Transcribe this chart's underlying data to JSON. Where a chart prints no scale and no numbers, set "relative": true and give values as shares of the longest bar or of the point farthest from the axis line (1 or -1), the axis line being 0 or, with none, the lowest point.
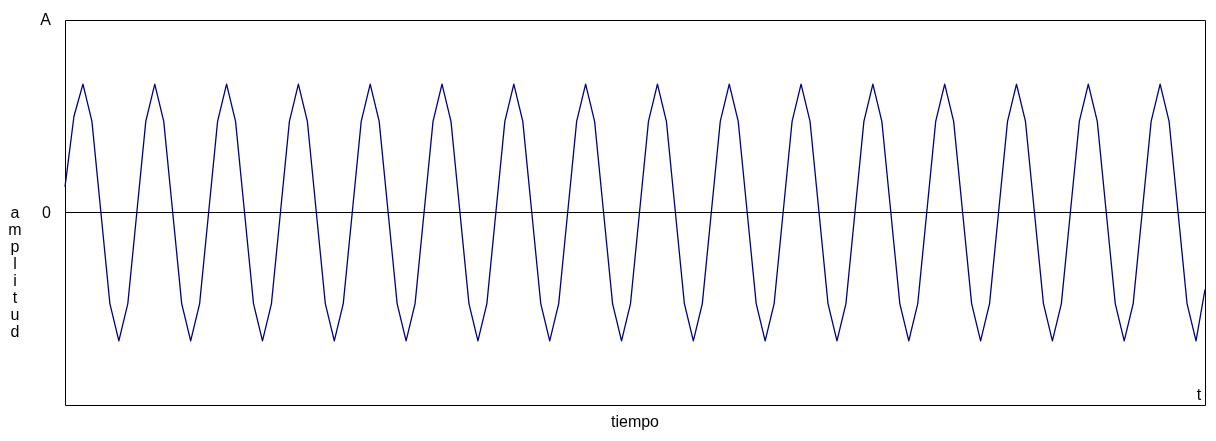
{
  "chart_data": {
    "type": "line",
    "xlabel": "tiempo",
    "ylabel": "amplitud",
    "relative": true,
    "categories": [
      null,
      null,
      null,
      null,
      null,
      null,
      null,
      null,
      null,
      null,
      null,
      null,
      null,
      null,
      null,
      null,
      null,
      null,
      null,
      null,
      null,
      null,
      null,
      null,
      null,
      null,
      null,
      null,
      null,
      null,
      null,
      null,
      null,
      null,
      null,
      null,
      null,
      null,
      null,
      null,
      null,
      null,
      null,
      null,
      null,
      null,
      null,
      null,
      null,
      null,
      null,
      null,
      null,
      null,
      null,
      null,
      null,
      null,
      null,
      null,
      null,
      null,
      null,
      null,
      null,
      null,
      null,
      null,
      null,
      null,
      null,
      null,
      null,
      null,
      null,
      null,
      null,
      null,
      null,
      null,
      null,
      null,
      null,
      null,
      null,
      null,
      null,
      null,
      null,
      null,
      null,
      null,
      null,
      null,
      null,
      null,
      null,
      null,
      null,
      null,
      null,
      null,
      null,
      null,
      null,
      null,
      null,
      null,
      null,
      null,
      null,
      null,
      null,
      null,
      null,
      null,
      null,
      null,
      null,
      null,
      null,
      null,
      null,
      null,
      null,
      null,
      null,
      null
    ],
    "series": [
      {
        "color": "#000080",
        "values": [
          0.2,
          0.75,
          1,
          0.71,
          0,
          -0.71,
          -1,
          -0.71,
          0,
          0.71,
          1,
          0.71,
          0,
          -0.71,
          -1,
          -0.71,
          0,
          0.71,
          1,
          0.71,
          0,
          -0.71,
          -1,
          -0.71,
          0,
          0.71,
          1,
          0.71,
          0,
          -0.71,
          -1,
          -0.71,
          0,
          0.71,
          1,
          0.71,
          0,
          -0.71,
          -1,
          -0.71,
          0,
          0.71,
          1,
          0.71,
          0,
          -0.71,
          -1,
          -0.71,
          0,
          0.71,
          1,
          0.71,
          0,
          -0.71,
          -1,
          -0.71,
          0,
          0.71,
          1,
          0.71,
          0,
          -0.71,
          -1,
          -0.71,
          0,
          0.71,
          1,
          0.71,
          0,
          -0.71,
          -1,
          -0.71,
          0,
          0.71,
          1,
          0.71,
          0,
          -0.71,
          -1,
          -0.71,
          0,
          0.71,
          1,
          0.71,
          0,
          -0.71,
          -1,
          -0.71,
          0,
          0.71,
          1,
          0.71,
          0,
          -0.71,
          -1,
          -0.71,
          0,
          0.71,
          1,
          0.71,
          0,
          -0.71,
          -1,
          -0.71,
          0,
          0.71,
          1,
          0.71,
          0,
          -0.71,
          -1,
          -0.71,
          0,
          0.71,
          1,
          0.71,
          0,
          -0.71,
          -1,
          -0.71,
          0,
          0.71,
          1,
          0.71,
          0,
          -0.71,
          -1,
          -0.6
        ]
      }
    ],
    "annotations": [
      "A",
      "0",
      "t"
    ],
    "ref_lines": [
      {
        "axis": "y",
        "value": 0,
        "color": "#000000"
      }
    ]
  }
}
